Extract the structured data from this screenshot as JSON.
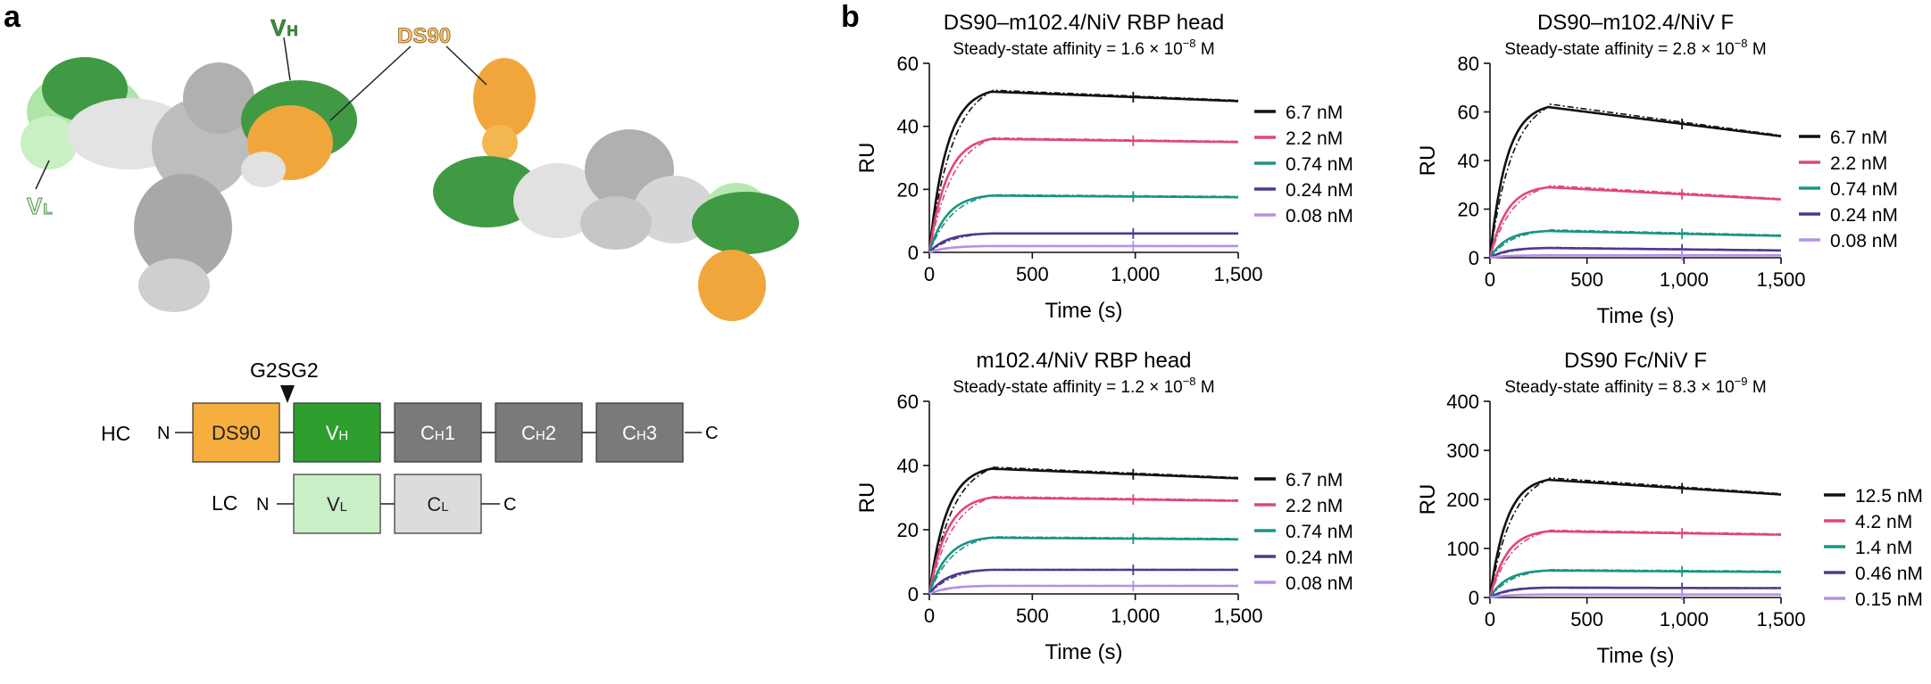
{
  "panel_a": {
    "label": "a",
    "structure_labels": {
      "vh": "V",
      "vh_sub": "H",
      "vl": "V",
      "vl_sub": "L",
      "ds90": "DS90"
    },
    "linker_label": "G2SG2",
    "hc": {
      "label": "HC",
      "n": "N",
      "c": "C",
      "domains": [
        {
          "main": "DS90",
          "sub": "",
          "suffix": "",
          "color": "#f6ae3e"
        },
        {
          "main": "V",
          "sub": "H",
          "suffix": "",
          "color": "#2e9e2e"
        },
        {
          "main": "C",
          "sub": "H",
          "suffix": "1",
          "color": "#7a7a7a"
        },
        {
          "main": "C",
          "sub": "H",
          "suffix": "2",
          "color": "#7a7a7a"
        },
        {
          "main": "C",
          "sub": "H",
          "suffix": "3",
          "color": "#7a7a7a"
        }
      ]
    },
    "lc": {
      "label": "LC",
      "n": "N",
      "c": "C",
      "domains": [
        {
          "main": "V",
          "sub": "L",
          "suffix": "",
          "color": "#c9efc6"
        },
        {
          "main": "C",
          "sub": "L",
          "suffix": "",
          "color": "#dcdcdc"
        }
      ]
    }
  },
  "panel_b": {
    "label": "b"
  },
  "colors": {
    "c1": "#111111",
    "c2": "#e0467c",
    "c3": "#1a9484",
    "c4": "#4d3a8f",
    "c5": "#b690e6"
  },
  "chart_data": [
    {
      "type": "line",
      "title": "DS90–m102.4/NiV RBP head",
      "subtitle_prefix": "Steady-state affinity = ",
      "subtitle_mantissa": "1.6 × 10",
      "subtitle_exp": "−8",
      "subtitle_unit": " M",
      "xlabel": "Time (s)",
      "ylabel": "RU",
      "xlim": [
        0,
        1500
      ],
      "ylim": [
        0,
        60
      ],
      "xticks": [
        0,
        500,
        1000,
        1500
      ],
      "xticklabels": [
        "0",
        "500",
        "1,000",
        "1,500"
      ],
      "yticks": [
        0,
        20,
        40,
        60
      ],
      "yticklabels": [
        "0",
        "20",
        "40",
        "60"
      ],
      "series": [
        {
          "name": "6.7 nM",
          "plateau": 51,
          "end": 48
        },
        {
          "name": "2.2 nM",
          "plateau": 36,
          "end": 35
        },
        {
          "name": "0.74 nM",
          "plateau": 18,
          "end": 17.5
        },
        {
          "name": "0.24 nM",
          "plateau": 6,
          "end": 6
        },
        {
          "name": "0.08 nM",
          "plateau": 2,
          "end": 2
        }
      ]
    },
    {
      "type": "line",
      "title": "DS90–m102.4/NiV F",
      "subtitle_prefix": "Steady-state affinity = ",
      "subtitle_mantissa": "2.8 × 10",
      "subtitle_exp": "−8",
      "subtitle_unit": " M",
      "xlabel": "Time (s)",
      "ylabel": "RU",
      "xlim": [
        0,
        1500
      ],
      "ylim": [
        0,
        80
      ],
      "xticks": [
        0,
        500,
        1000,
        1500
      ],
      "xticklabels": [
        "0",
        "500",
        "1,000",
        "1,500"
      ],
      "yticks": [
        0,
        20,
        40,
        60,
        80
      ],
      "yticklabels": [
        "0",
        "20",
        "40",
        "60",
        "80"
      ],
      "series": [
        {
          "name": "6.7 nM",
          "plateau": 62,
          "end": 50
        },
        {
          "name": "2.2 nM",
          "plateau": 29,
          "end": 24
        },
        {
          "name": "0.74 nM",
          "plateau": 11,
          "end": 9
        },
        {
          "name": "0.24 nM",
          "plateau": 4,
          "end": 3
        },
        {
          "name": "0.08 nM",
          "plateau": 1,
          "end": 1
        }
      ]
    },
    {
      "type": "line",
      "title": "m102.4/NiV RBP head",
      "subtitle_prefix": "Steady-state affinity = ",
      "subtitle_mantissa": "1.2 × 10",
      "subtitle_exp": "−8",
      "subtitle_unit": " M",
      "xlabel": "Time (s)",
      "ylabel": "RU",
      "xlim": [
        0,
        1500
      ],
      "ylim": [
        0,
        60
      ],
      "xticks": [
        0,
        500,
        1000,
        1500
      ],
      "xticklabels": [
        "0",
        "500",
        "1,000",
        "1,500"
      ],
      "yticks": [
        0,
        20,
        40,
        60
      ],
      "yticklabels": [
        "0",
        "20",
        "40",
        "60"
      ],
      "series": [
        {
          "name": "6.7 nM",
          "plateau": 39,
          "end": 36
        },
        {
          "name": "2.2 nM",
          "plateau": 30,
          "end": 29
        },
        {
          "name": "0.74 nM",
          "plateau": 17.5,
          "end": 17
        },
        {
          "name": "0.24 nM",
          "plateau": 7.5,
          "end": 7.5
        },
        {
          "name": "0.08 nM",
          "plateau": 2.5,
          "end": 2.5
        }
      ]
    },
    {
      "type": "line",
      "title": "DS90 Fc/NiV F",
      "subtitle_prefix": "Steady-state affinity = ",
      "subtitle_mantissa": "8.3 × 10",
      "subtitle_exp": "−9",
      "subtitle_unit": " M",
      "xlabel": "Time (s)",
      "ylabel": "RU",
      "xlim": [
        0,
        1500
      ],
      "ylim": [
        0,
        400
      ],
      "xticks": [
        0,
        500,
        1000,
        1500
      ],
      "xticklabels": [
        "0",
        "500",
        "1,000",
        "1,500"
      ],
      "yticks": [
        0,
        100,
        200,
        300,
        400
      ],
      "yticklabels": [
        "0",
        "100",
        "200",
        "300",
        "400"
      ],
      "series": [
        {
          "name": "12.5 nM",
          "plateau": 240,
          "end": 210
        },
        {
          "name": "4.2 nM",
          "plateau": 135,
          "end": 128
        },
        {
          "name": "1.4 nM",
          "plateau": 55,
          "end": 52
        },
        {
          "name": "0.46 nM",
          "plateau": 20,
          "end": 19
        },
        {
          "name": "0.15 nM",
          "plateau": 6,
          "end": 6
        }
      ]
    }
  ]
}
